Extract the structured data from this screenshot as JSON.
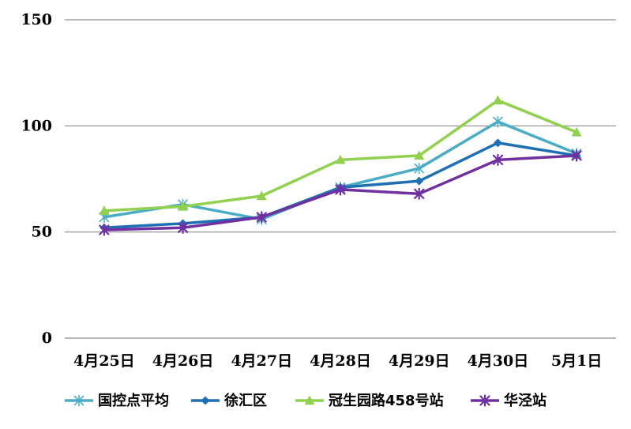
{
  "chart_data": {
    "type": "line",
    "title": "",
    "xlabel": "",
    "ylabel": "",
    "categories": [
      "4月25日",
      "4月26日",
      "4月27日",
      "4月28日",
      "4月29日",
      "4月30日",
      "5月1日"
    ],
    "ylim": [
      0,
      150
    ],
    "yticks": [
      0,
      50,
      100,
      150
    ],
    "grid": true,
    "legend_position": "bottom",
    "series": [
      {
        "name": "国控点平均",
        "color": "#4BACC6",
        "marker": "asterisk",
        "values": [
          57,
          63,
          56,
          71,
          80,
          102,
          87
        ]
      },
      {
        "name": "徐汇区",
        "color": "#1F6FB5",
        "marker": "diamond",
        "values": [
          52,
          54,
          57,
          71,
          74,
          92,
          86
        ]
      },
      {
        "name": "冠生园路458号站",
        "color": "#92D050",
        "marker": "triangle",
        "values": [
          60,
          62,
          67,
          84,
          86,
          112,
          97
        ]
      },
      {
        "name": "华泾站",
        "color": "#7030A0",
        "marker": "star",
        "values": [
          51,
          52,
          57,
          70,
          68,
          84,
          86
        ]
      }
    ]
  }
}
